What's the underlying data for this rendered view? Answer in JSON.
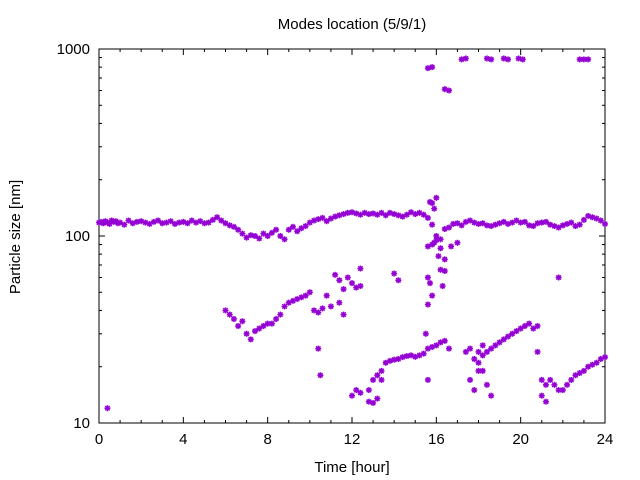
{
  "chart_data": {
    "type": "scatter",
    "title": "Modes location (5/9/1)",
    "xlabel": "Time [hour]",
    "ylabel": "Particle size [nm]",
    "xlim": [
      0,
      24
    ],
    "ylim": [
      10,
      1000
    ],
    "y_scale": "log",
    "x_ticks": [
      0,
      4,
      8,
      12,
      16,
      20,
      24
    ],
    "x_tick_labels": [
      "0",
      "4",
      "8",
      "12",
      "16",
      "20",
      "24"
    ],
    "y_ticks": [
      10,
      100,
      1000
    ],
    "y_tick_labels": [
      "10",
      "100",
      "1000"
    ],
    "grid": false,
    "legend": "none",
    "marker_color": "#9400D3",
    "marker": "star",
    "series": [
      {
        "x": [
          0.0,
          0.1,
          0.2,
          0.3,
          0.4,
          0.5,
          0.6,
          0.7,
          0.8,
          0.9,
          1.0,
          1.2,
          1.4,
          1.6,
          1.8,
          2.0,
          2.2,
          2.4,
          2.6,
          2.8,
          3.0,
          3.2,
          3.4,
          3.6,
          3.8,
          4.0,
          4.2,
          4.4,
          4.6,
          4.8,
          5.0,
          5.2,
          5.4,
          5.6,
          5.8,
          6.0,
          6.2,
          6.4,
          6.6,
          6.8,
          7.0,
          7.2,
          7.4,
          7.6,
          7.8,
          8.0,
          8.2,
          8.4,
          8.6,
          8.8,
          9.0,
          9.2,
          9.4,
          9.6,
          9.8,
          10.0,
          10.2,
          10.4,
          10.6,
          10.8,
          11.0,
          11.2,
          11.4,
          11.6,
          11.8,
          12.0,
          12.2,
          12.4,
          12.6,
          12.8,
          13.0,
          13.2,
          13.4,
          13.6,
          13.8,
          14.0,
          14.2,
          14.4,
          14.6,
          14.8,
          15.0,
          15.2,
          15.4,
          15.6,
          15.8,
          16.0,
          16.2,
          16.4,
          16.6,
          16.8,
          17.0,
          17.2,
          17.4,
          17.6,
          17.8,
          18.0,
          18.2,
          18.4,
          18.6,
          18.8,
          19.0,
          19.2,
          19.4,
          19.6,
          19.8,
          20.0,
          20.2,
          20.4,
          20.6,
          20.8,
          21.0,
          21.2,
          21.4,
          21.6,
          21.8,
          22.0,
          22.2,
          22.4,
          22.6,
          22.8,
          23.0,
          23.2,
          23.4,
          23.6,
          23.8,
          24.0,
          0.4,
          6.0,
          6.2,
          6.4,
          6.6,
          6.8,
          7.0,
          7.2,
          7.4,
          7.6,
          7.8,
          8.0,
          8.2,
          8.4,
          8.6,
          8.8,
          9.0,
          9.2,
          9.4,
          9.6,
          9.8,
          10.0,
          10.2,
          10.4,
          10.6,
          10.8,
          11.0,
          11.2,
          11.4,
          11.6,
          11.8,
          12.0,
          12.2,
          12.4,
          10.4,
          10.5,
          11.4,
          11.6,
          12.4,
          14.0,
          14.2,
          12.0,
          12.2,
          12.4,
          12.8,
          13.0,
          13.2,
          13.4,
          13.6,
          13.8,
          14.0,
          14.2,
          14.4,
          14.6,
          14.8,
          15.0,
          15.2,
          15.4,
          15.6,
          15.8,
          16.0,
          16.2,
          16.4,
          16.6,
          12.8,
          13.0,
          13.2,
          13.4,
          15.6,
          15.7,
          15.8,
          15.6,
          15.8,
          15.9,
          16.0,
          16.1,
          16.2,
          16.3,
          16.4,
          15.6,
          15.7,
          15.8,
          15.9,
          16.0,
          16.2,
          16.4,
          16.7,
          17.0,
          15.5,
          15.6,
          17.4,
          17.6,
          17.8,
          18.0,
          18.2,
          18.4,
          18.6,
          18.8,
          19.0,
          19.2,
          19.4,
          19.6,
          19.8,
          20.0,
          20.2,
          20.4,
          20.6,
          20.8,
          17.6,
          17.8,
          18.0,
          18.2,
          18.4,
          18.6,
          18.0,
          18.2,
          20.8,
          21.0,
          21.2,
          21.4,
          21.6,
          21.8,
          22.0,
          22.2,
          22.4,
          22.6,
          22.8,
          23.0,
          23.2,
          23.4,
          23.6,
          23.8,
          24.0,
          21.0,
          21.2,
          21.8,
          15.6,
          15.8,
          16.4,
          16.6,
          17.2,
          17.4,
          18.4,
          18.6,
          19.2,
          19.4,
          19.9,
          20.1,
          22.8,
          23.0,
          23.2
        ],
        "y": [
          118,
          119,
          117,
          120,
          118,
          116,
          121,
          119,
          120,
          117,
          118,
          115,
          121,
          117,
          119,
          120,
          118,
          116,
          119,
          121,
          117,
          118,
          120,
          116,
          118,
          119,
          117,
          121,
          118,
          120,
          117,
          118,
          122,
          126,
          121,
          117,
          114,
          112,
          108,
          103,
          98,
          101,
          100,
          97,
          103,
          100,
          104,
          108,
          100,
          96,
          108,
          112,
          106,
          110,
          113,
          118,
          121,
          123,
          125,
          120,
          124,
          127,
          129,
          131,
          133,
          134,
          132,
          130,
          133,
          131,
          132,
          130,
          133,
          129,
          133,
          131,
          129,
          127,
          130,
          134,
          131,
          133,
          130,
          125,
          115,
          100,
          96,
          109,
          111,
          116,
          117,
          114,
          119,
          121,
          118,
          116,
          117,
          114,
          113,
          115,
          117,
          119,
          116,
          118,
          121,
          118,
          119,
          114,
          113,
          117,
          118,
          119,
          115,
          113,
          111,
          114,
          116,
          118,
          113,
          115,
          122,
          128,
          126,
          124,
          121,
          116,
          12,
          40,
          38,
          36,
          33,
          35,
          30,
          28,
          31,
          32,
          33,
          34,
          34,
          36,
          38,
          42,
          44,
          45,
          46,
          47,
          48,
          50,
          40,
          39,
          41,
          48,
          42,
          62,
          58,
          52,
          60,
          56,
          53,
          54,
          25,
          18,
          44,
          38,
          67,
          63,
          58,
          14,
          15,
          14.5,
          15,
          17,
          18,
          19,
          21,
          21.5,
          21.8,
          22,
          22.5,
          22.8,
          23,
          22.6,
          23,
          23.5,
          25,
          25.5,
          26,
          27,
          27.5,
          25,
          13,
          12.8,
          13.5,
          17,
          43,
          56,
          48,
          88,
          90,
          92,
          95,
          78,
          66,
          54,
          65,
          60,
          152,
          150,
          140,
          160,
          86,
          75,
          88,
          92,
          30,
          17,
          24,
          25,
          22,
          21,
          23,
          24,
          25,
          26,
          27,
          28,
          29,
          30,
          31,
          32,
          33,
          34,
          32,
          33,
          17,
          15,
          19,
          19,
          16,
          14,
          24,
          26,
          24,
          17,
          16,
          17,
          16,
          15,
          15,
          16,
          17,
          18,
          18.5,
          19,
          20,
          20.5,
          21,
          22,
          22.5,
          14,
          13,
          60,
          790,
          800,
          610,
          600,
          880,
          890,
          890,
          880,
          890,
          880,
          890,
          880,
          880,
          880,
          880
        ]
      }
    ]
  }
}
